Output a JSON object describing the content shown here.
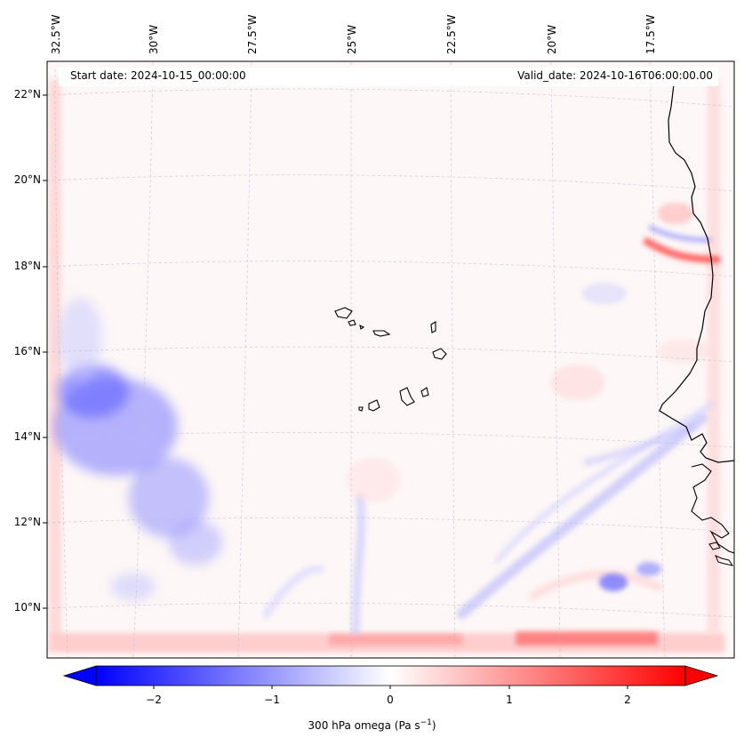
{
  "map": {
    "start_date": "Start date: 2024-10-15_00:00:00",
    "valid_date": "Valid_date: 2024-10-16T06:00:00.00",
    "longitude_labels": [
      "32.5°W",
      "30°W",
      "27.5°W",
      "25°W",
      "22.5°W",
      "20°W",
      "17.5°W"
    ],
    "latitude_labels": [
      "22°N",
      "20°N",
      "18°N",
      "16°N",
      "14°N",
      "12°N",
      "10°N"
    ],
    "field": "300 hPa omega",
    "units": "Pa s",
    "units_exponent": "−1",
    "colormap": {
      "negative": "#0000ff",
      "zero": "#ffffff",
      "positive": "#ff0000"
    }
  },
  "colorbar": {
    "ticks": [
      "−2",
      "−1",
      "0",
      "1",
      "2"
    ],
    "min": -2.75,
    "max": 2.75,
    "label_main": "300 hPa omega (Pa s",
    "label_sup": "−1",
    "label_end": ")"
  }
}
